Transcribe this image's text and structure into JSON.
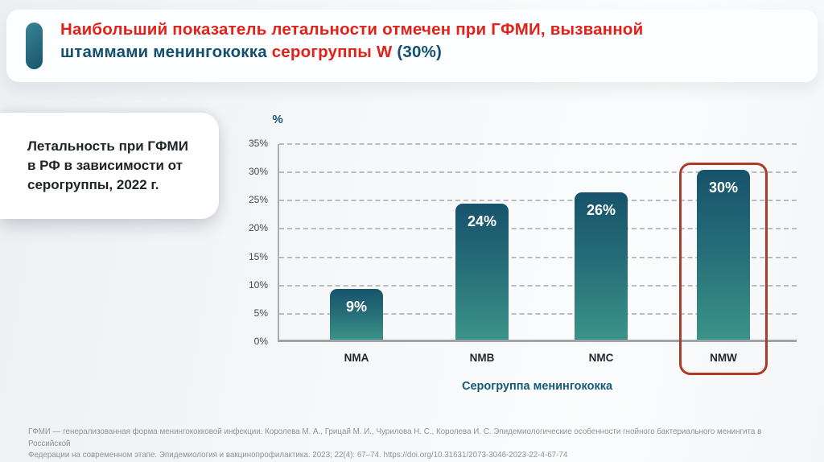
{
  "slide": {
    "title": {
      "line1": "Наибольший показатель летальности отмечен при ГФМИ, вызванной",
      "line2_dark1": "штаммами менингококка ",
      "line2_red": "серогруппы W ",
      "line2_dark2": "(30%)"
    },
    "info_card": {
      "text": "Летальность при ГФМИ в РФ в зависимости от серогруппы, 2022 г."
    },
    "colors": {
      "title_red": "#e32119",
      "title_dark": "#14506e",
      "accent_pill": "#2a6f82",
      "bar_gradient_top": "#17536b",
      "bar_gradient_bottom": "#3b9387",
      "highlight_box": "#b03a28",
      "axis_title": "#15597c"
    },
    "footer": {
      "line1": "ГФМИ — генерализованная форма менингококковой инфекции. Королева М. А., Грицай М. И., Чурилова Н. С., Королева И. С. Эпидемиологические особенности гнойного бактериального менингита в Российской",
      "line2": "Федерации на современном этапе. Эпидемиология и вакцинопрофилактика. 2023; 22(4): 67–74. https://doi.org/10.31631/2073-3046-2023-22-4-67-74"
    }
  },
  "chart_data": {
    "type": "bar",
    "title": "Летальность при ГФМИ в РФ в зависимости от серогруппы, 2022 г.",
    "categories": [
      "NMA",
      "NMB",
      "NMC",
      "NMW"
    ],
    "values": [
      9,
      24,
      26,
      30
    ],
    "value_labels": [
      "9%",
      "24%",
      "26%",
      "30%"
    ],
    "xlabel": "Серогруппа менингококка",
    "ylabel": "%",
    "ylim": [
      0,
      35
    ],
    "ytick_step": 5,
    "yticks": [
      "0%",
      "5%",
      "10%",
      "15%",
      "20%",
      "25%",
      "30%",
      "35%"
    ],
    "grid": "dashed horizontal gridlines, solid bottom axis",
    "legend": "none",
    "highlighted_category": "NMW",
    "highlight_note": "red rounded outline around NMW bar and its label"
  }
}
